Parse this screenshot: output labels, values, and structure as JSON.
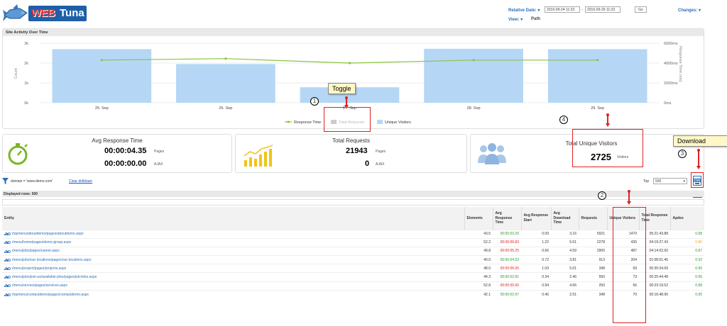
{
  "header": {
    "brand_web": "WEB",
    "brand_tuna": "Tuna",
    "relative_date_label": "Relative Date:",
    "date_from": "2016-09-24 11:33",
    "date_sep": "-",
    "date_to": "2016-09-29 11:33",
    "go_label": "Go",
    "view_label": "View:",
    "view_value": "Path",
    "changes_label": "Changes:"
  },
  "panel": {
    "title": "Site Activity Over Time"
  },
  "chart_data": {
    "type": "bar",
    "categories": [
      "25. Sep",
      "26. Sep",
      "27. Sep",
      "28. Sep",
      "29. Sep"
    ],
    "series": [
      {
        "name": "Total Requests",
        "values": [
          null,
          null,
          null,
          null,
          null
        ],
        "hidden": true
      },
      {
        "name": "Unique Visitors",
        "values": [
          2700,
          1950,
          780,
          2720,
          2700
        ]
      },
      {
        "name": "Response Time",
        "values": [
          4300,
          4450,
          4000,
          4300,
          4300
        ],
        "kind": "line",
        "axis": "right"
      }
    ],
    "yticks_left": [
      "0k",
      "1k",
      "2k",
      "3k"
    ],
    "yticks_right": [
      "0ms",
      "2000ms",
      "4000ms",
      "6000ms"
    ],
    "ylim_left": [
      0,
      3000
    ],
    "ylim_right": [
      0,
      6000
    ],
    "ylabel": "Count",
    "ylabel_right": "Response Time (ms)",
    "grid": true,
    "legend": "bottom-center",
    "colors": {
      "bars": "#b5d7f5",
      "line": "#8ac440"
    }
  },
  "legend": {
    "response": "Response Time",
    "requests": "Total Requests",
    "visitors": "Unique Visitors"
  },
  "cards": {
    "response": {
      "title": "Avg Response Time",
      "pages_value": "00:00:04.35",
      "pages_label": "Pages",
      "ajax_value": "00:00:00.00",
      "ajax_label": "AJAX"
    },
    "requests": {
      "title": "Total Requests",
      "pages_value": "21943",
      "pages_label": "Pages",
      "ajax_value": "0",
      "ajax_label": "AJAX"
    },
    "visitors": {
      "title": "Total Unique Visitors",
      "value": "2725",
      "label": "Visitors"
    }
  },
  "annotations": {
    "toggle": "Toggle",
    "download": "Download",
    "n1": "1",
    "n2": "2",
    "n3": "3",
    "n4": "4"
  },
  "filter": {
    "text": "domain = 'www.demo.com'",
    "clear": "Clear drilldown",
    "top_label": "Top",
    "top_value": "500",
    "csv": "CSV",
    "reset": "Reset",
    "displayed_rows": "Displayed rows: 500"
  },
  "table": {
    "headers": [
      "Entity",
      "Elements",
      "Avg Response Time",
      "Avg Response Start",
      "Avg Download Time",
      "Requests",
      "Unique Visitors",
      "Total Response Time",
      "Apdex"
    ],
    "rows": [
      {
        "entity": "/topmenu/aboutdemo/pages/aboutdemo.aspx",
        "elements": "43.5",
        "resp": "00:00:03.26",
        "resp_status": "ok",
        "start": "0.09",
        "dl": "3.16",
        "req": "5921",
        "uv": "1470",
        "total": "05:21:43.88",
        "apdex": "0.98",
        "apdex_status": "ok"
      },
      {
        "entity": "/menu/home/pages/demo-group.aspx",
        "elements": "52.2",
        "resp": "00:00:06.83",
        "resp_status": "bad",
        "start": "1.22",
        "dl": "5.61",
        "req": "2278",
        "uv": "435",
        "total": "04:19:27.43",
        "apdex": "0.80",
        "apdex_status": "warn"
      },
      {
        "entity": "/menu/jobs/pages/career.aspx",
        "elements": "49.8",
        "resp": "00:00:05.25",
        "resp_status": "bad",
        "start": "0.66",
        "dl": "4.59",
        "req": "2905",
        "uv": "487",
        "total": "04:14:02.60",
        "apdex": "0.87",
        "apdex_status": "ok"
      },
      {
        "entity": "/menu/jobs/our-locations/pages/our-locations.aspx",
        "elements": "40.0",
        "resp": "00:00:04.53",
        "resp_status": "ok",
        "start": "0.72",
        "dl": "3.81",
        "req": "913",
        "uv": "204",
        "total": "01:08:51.46",
        "apdex": "0.92",
        "apdex_status": "ok"
      },
      {
        "entity": "/menu/project/pages/projects.aspx",
        "elements": "48.0",
        "resp": "00:00:06.05",
        "resp_status": "bad",
        "start": "1.03",
        "dl": "5.01",
        "req": "348",
        "uv": "69",
        "total": "00:35:04.69",
        "apdex": "0.90",
        "apdex_status": "ok"
      },
      {
        "entity": "/menu/jobs/join-us/available-jobs/pages/job-links.aspx",
        "elements": "44.3",
        "resp": "00:00:02.81",
        "resp_status": "ok",
        "start": "0.34",
        "dl": "2.46",
        "req": "550",
        "uv": "73",
        "total": "00:25:44.48",
        "apdex": "0.96",
        "apdex_status": "ok"
      },
      {
        "entity": "/menu/service/pages/services.aspx",
        "elements": "52.8",
        "resp": "00:00:05.60",
        "resp_status": "bad",
        "start": "0.94",
        "dl": "4.66",
        "req": "250",
        "uv": "56",
        "total": "00:23:19.52",
        "apdex": "0.88",
        "apdex_status": "ok"
      },
      {
        "entity": "/topmenu/contactdemo/pages/contactdemo.aspx",
        "elements": "42.1",
        "resp": "00:00:02.97",
        "resp_status": "ok",
        "start": "0.46",
        "dl": "2.51",
        "req": "348",
        "uv": "70",
        "total": "00:16:48.90",
        "apdex": "0.95",
        "apdex_status": "ok"
      }
    ]
  }
}
